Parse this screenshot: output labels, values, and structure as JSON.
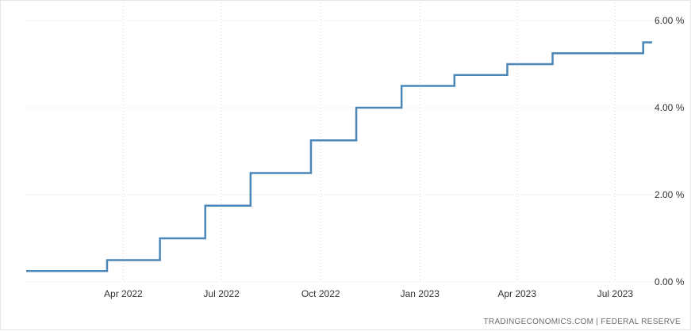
{
  "chart_data": {
    "type": "line",
    "step": true,
    "title": "",
    "xlabel": "",
    "ylabel": "",
    "x_range": [
      "2022-01-01",
      "2023-08-05"
    ],
    "ylim": [
      0,
      6
    ],
    "y_ticks": [
      {
        "value": 0,
        "label": "0.00 %"
      },
      {
        "value": 2,
        "label": "2.00 %"
      },
      {
        "value": 4,
        "label": "4.00 %"
      },
      {
        "value": 6,
        "label": "6.00 %"
      }
    ],
    "x_ticks": [
      {
        "date": "2022-04-01",
        "label": "Apr 2022"
      },
      {
        "date": "2022-07-01",
        "label": "Jul 2022"
      },
      {
        "date": "2022-10-01",
        "label": "Oct 2022"
      },
      {
        "date": "2023-01-01",
        "label": "Jan 2023"
      },
      {
        "date": "2023-04-01",
        "label": "Apr 2023"
      },
      {
        "date": "2023-07-01",
        "label": "Jul 2023"
      }
    ],
    "grid": true,
    "line_color": "#4a86b8",
    "series": [
      {
        "name": "",
        "points": [
          {
            "date": "2022-01-01",
            "value": 0.25
          },
          {
            "date": "2022-03-17",
            "value": 0.5
          },
          {
            "date": "2022-05-05",
            "value": 1.0
          },
          {
            "date": "2022-06-16",
            "value": 1.75
          },
          {
            "date": "2022-07-28",
            "value": 2.5
          },
          {
            "date": "2022-09-22",
            "value": 3.25
          },
          {
            "date": "2022-11-03",
            "value": 4.0
          },
          {
            "date": "2022-12-15",
            "value": 4.5
          },
          {
            "date": "2023-02-02",
            "value": 4.75
          },
          {
            "date": "2023-03-23",
            "value": 5.0
          },
          {
            "date": "2023-05-04",
            "value": 5.25
          },
          {
            "date": "2023-07-27",
            "value": 5.5
          }
        ]
      }
    ]
  },
  "source": "TRADINGECONOMICS.COM  |  FEDERAL RESERVE"
}
